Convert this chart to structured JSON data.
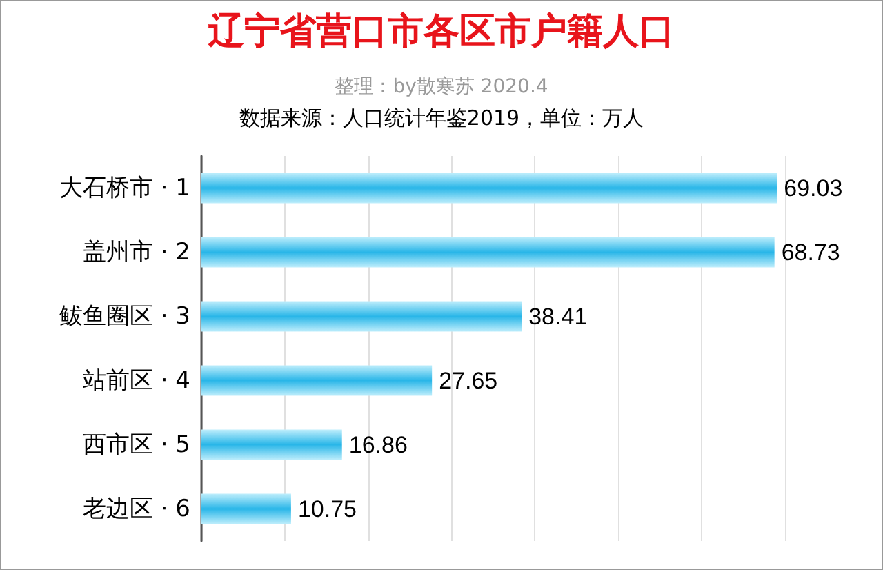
{
  "chart_data": {
    "type": "bar",
    "orientation": "horizontal",
    "title": "辽宁省营口市各区市户籍人口",
    "subtitle": "整理：by散寒苏 2020.4",
    "annotations": [
      "数据来源：人口统计年鉴2019，单位：万人"
    ],
    "categories": [
      "大石桥市 · 1",
      "盖州市 · 2",
      "鲅鱼圈区 · 3",
      "站前区 · 4",
      "西市区 · 5",
      "老边区 · 6"
    ],
    "values": [
      69.03,
      68.73,
      38.41,
      27.65,
      16.86,
      10.75
    ],
    "color": "#29b6e8",
    "data_labels": true,
    "grid": "x",
    "tick_labels": "y"
  }
}
